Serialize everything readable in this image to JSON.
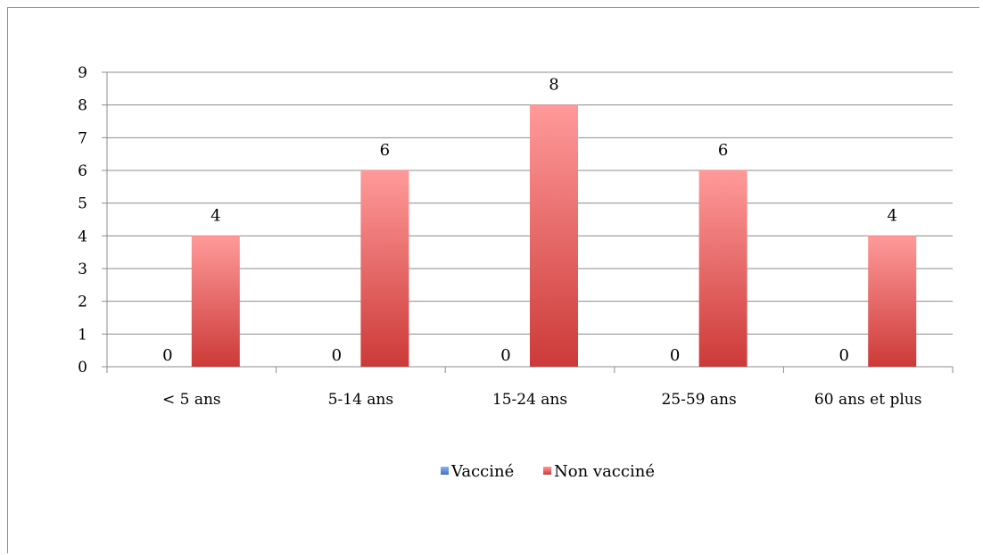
{
  "chart_data": {
    "type": "bar",
    "categories": [
      "< 5 ans",
      "5-14 ans",
      "15-24 ans",
      "25-59 ans",
      "60 ans et plus"
    ],
    "series": [
      {
        "name": "Vacciné",
        "values": [
          0,
          0,
          0,
          0,
          0
        ],
        "color": "#4f81bd"
      },
      {
        "name": "Non vacciné",
        "values": [
          4,
          6,
          8,
          6,
          4
        ],
        "color": "#c0504d",
        "color_light": "#ff9999"
      }
    ],
    "ylim": [
      0,
      9
    ],
    "yticks": [
      "0",
      "1",
      "2",
      "3",
      "4",
      "5",
      "6",
      "7",
      "8",
      "9"
    ],
    "grid": true,
    "legend_position": "bottom",
    "title": "",
    "xlabel": "",
    "ylabel": ""
  }
}
